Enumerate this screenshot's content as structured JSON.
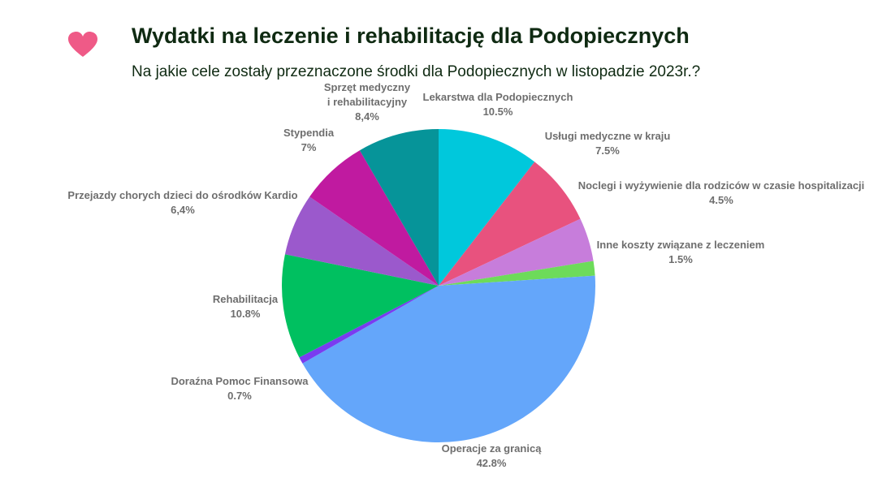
{
  "chart_data": {
    "type": "pie",
    "title": "Wydatki na leczenie i rehabilitację dla Podopiecznych",
    "subtitle": "Na jakie cele zostały przeznaczone środki dla Podopiecznych w listopadzie 2023r.?",
    "categories": [
      "Lekarstwa dla Podopiecznych",
      "Usługi medyczne w kraju",
      "Noclegi i wyżywienie dla rodziców w czasie hospitalizacji",
      "Inne koszty związane z leczeniem",
      "Operacje za granicą",
      "Doraźna Pomoc Finansowa",
      "Rehabilitacja",
      "Przejazdy chorych dzieci do ośrodków Kardio",
      "Stypendia",
      "Sprzęt medyczny\ni rehabilitacyjny"
    ],
    "values": [
      10.5,
      7.5,
      4.5,
      1.5,
      42.8,
      0.7,
      10.8,
      6.4,
      7,
      8.4
    ],
    "value_labels": [
      "10.5%",
      "7.5%",
      "4.5%",
      "1.5%",
      "42.8%",
      "0.7%",
      "10.8%",
      "6,4%",
      "7%",
      "8,4%"
    ],
    "colors": [
      "#00c8dc",
      "#e8527e",
      "#c77ddb",
      "#6ddb5a",
      "#64a6fa",
      "#7a3cf0",
      "#00c060",
      "#9b59cc",
      "#c01aa0",
      "#069499"
    ]
  }
}
